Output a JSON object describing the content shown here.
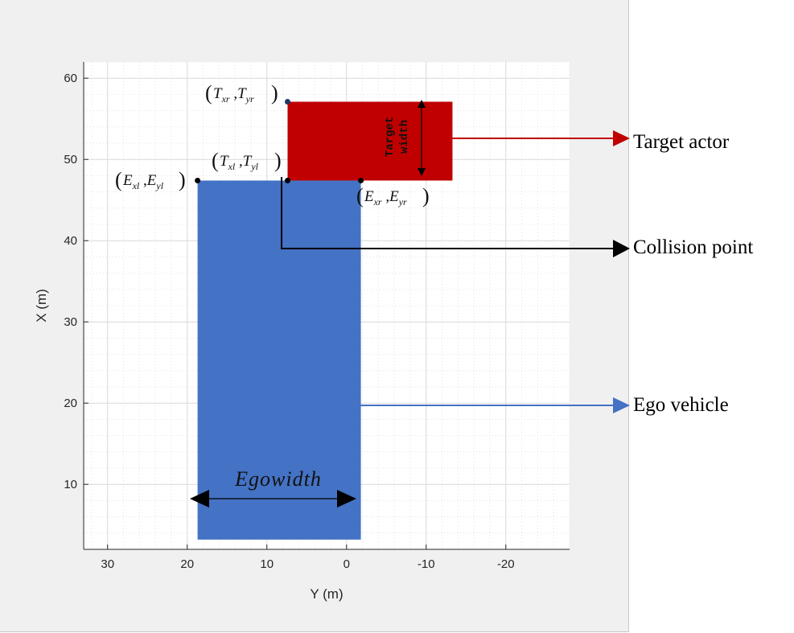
{
  "colors": {
    "ego": "#4472c4",
    "target": "#c00000",
    "collision_line": "#000000",
    "figure_bg": "#f0f0f0",
    "plot_bg": "#ffffff",
    "grid": "#e3e3e3"
  },
  "chart_data": {
    "type": "diagram",
    "xlabel": "Y (m)",
    "ylabel": "X (m)",
    "x_axis_reversed": true,
    "xlim": [
      33,
      -28
    ],
    "ylim": [
      2,
      62
    ],
    "xticks": [
      30,
      20,
      10,
      0,
      -10,
      -20
    ],
    "yticks": [
      10,
      20,
      30,
      40,
      50,
      60
    ],
    "grid": true,
    "minor_grid": true,
    "rectangles": [
      {
        "name": "Ego vehicle",
        "y_left": 18.7,
        "y_right": -1.8,
        "x_bottom": 3.2,
        "x_top": 47.4,
        "color": "#4472c4"
      },
      {
        "name": "Target actor",
        "y_left": 7.4,
        "y_right": -13.3,
        "x_bottom": 47.4,
        "x_top": 57.1,
        "color": "#c00000"
      }
    ],
    "points": [
      {
        "id": "Txr_Tyr",
        "y": 7.4,
        "x": 57.1,
        "label_main_1": "T",
        "label_sub_1": "xr",
        "label_main_2": "T",
        "label_sub_2": "yr"
      },
      {
        "id": "Txl_Tyl",
        "y": 7.4,
        "x": 47.4,
        "label_main_1": "T",
        "label_sub_1": "xl",
        "label_main_2": "T",
        "label_sub_2": "yl"
      },
      {
        "id": "Exl_Eyl",
        "y": 18.7,
        "x": 47.4,
        "label_main_1": "E",
        "label_sub_1": "xl",
        "label_main_2": "E",
        "label_sub_2": "yl"
      },
      {
        "id": "Exr_Eyr",
        "y": -1.8,
        "x": 47.4,
        "label_main_1": "E",
        "label_sub_1": "xr",
        "label_main_2": "E",
        "label_sub_2": "yr"
      }
    ]
  },
  "annotations": {
    "target_width_line1": "Target",
    "target_width_line2": "width",
    "ego_width": "Egowidth",
    "label_target_actor": "Target actor",
    "label_collision_point": "Collision point",
    "label_ego_vehicle": "Ego vehicle"
  }
}
